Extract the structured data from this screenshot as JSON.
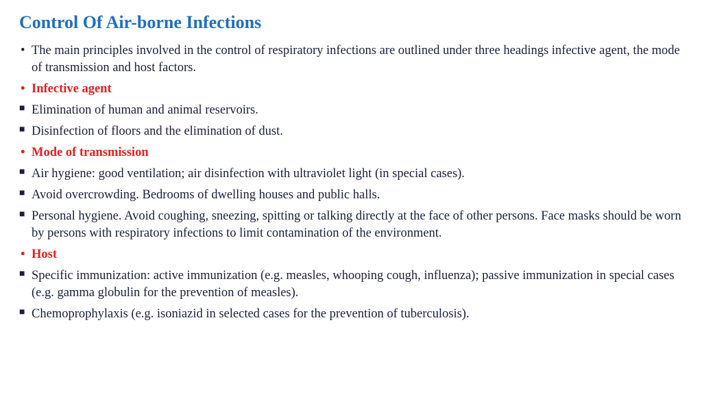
{
  "colors": {
    "title_color": "#1F6FBF",
    "body_color": "#1A1F3A",
    "subheading_color": "#E81E1E",
    "background": "#ffffff"
  },
  "typography": {
    "title_fontsize": 26,
    "body_fontsize": 18.5,
    "title_fontweight": "bold",
    "subheading_fontweight": "bold",
    "font_family": "Georgia, Times New Roman, serif"
  },
  "title": "Control Of Air-borne Infections",
  "items": [
    {
      "type": "bullet-round",
      "style": "body",
      "text": "The main principles involved in the control of respiratory infections are outlined under three headings infective agent, the mode of transmission and host factors."
    },
    {
      "type": "bullet-round",
      "style": "subheading",
      "text": "Infective agent"
    },
    {
      "type": "bullet-square",
      "style": "body",
      "text": "Elimination of human and animal reservoirs."
    },
    {
      "type": "bullet-square",
      "style": "body",
      "text": "Disinfection of floors and the elimination of dust."
    },
    {
      "type": "bullet-round",
      "style": "subheading",
      "text": "Mode of transmission"
    },
    {
      "type": "bullet-square",
      "style": "body",
      "text": "Air hygiene: good ventilation; air disinfection with ultraviolet light (in special cases)."
    },
    {
      "type": "bullet-square",
      "style": "body",
      "text": "Avoid overcrowding. Bedrooms of dwelling houses and public halls."
    },
    {
      "type": "bullet-square",
      "style": "body",
      "text": "Personal hygiene. Avoid coughing, sneezing, spitting or talking directly at the face of other persons. Face masks should be worn by persons with respiratory infections to limit contamination of the environment."
    },
    {
      "type": "bullet-round",
      "style": "subheading",
      "text": "Host"
    },
    {
      "type": "bullet-square",
      "style": "body",
      "text": "Specific immunization: active immunization (e.g. measles, whooping cough, influenza); passive immunization in special cases (e.g. gamma globulin for the prevention of measles)."
    },
    {
      "type": "bullet-square",
      "style": "body",
      "text": "Chemoprophylaxis (e.g. isoniazid in selected cases for the prevention of tuberculosis)."
    }
  ]
}
